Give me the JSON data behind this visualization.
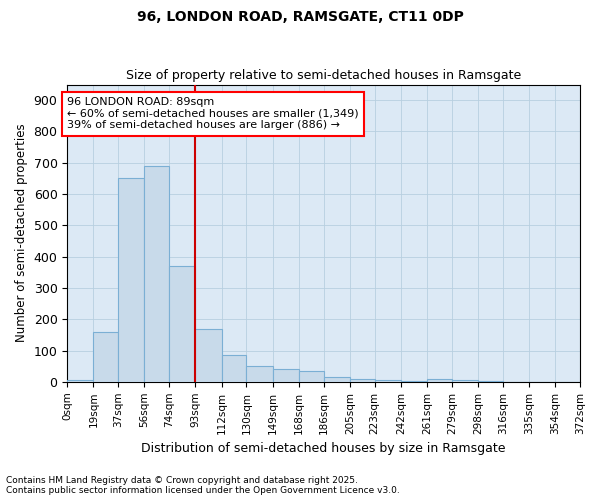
{
  "title1": "96, LONDON ROAD, RAMSGATE, CT11 0DP",
  "title2": "Size of property relative to semi-detached houses in Ramsgate",
  "xlabel": "Distribution of semi-detached houses by size in Ramsgate",
  "ylabel": "Number of semi-detached properties",
  "annotation_line1": "96 LONDON ROAD: 89sqm",
  "annotation_line2": "← 60% of semi-detached houses are smaller (1,349)",
  "annotation_line3": "39% of semi-detached houses are larger (886) →",
  "bin_edges": [
    0,
    19,
    37,
    56,
    74,
    93,
    112,
    130,
    149,
    168,
    186,
    205,
    223,
    242,
    261,
    279,
    298,
    316,
    335,
    354,
    372
  ],
  "bin_labels": [
    "0sqm",
    "19sqm",
    "37sqm",
    "56sqm",
    "74sqm",
    "93sqm",
    "112sqm",
    "130sqm",
    "149sqm",
    "168sqm",
    "186sqm",
    "205sqm",
    "223sqm",
    "242sqm",
    "261sqm",
    "279sqm",
    "298sqm",
    "316sqm",
    "335sqm",
    "354sqm",
    "372sqm"
  ],
  "counts": [
    5,
    160,
    650,
    690,
    370,
    170,
    85,
    50,
    40,
    35,
    15,
    10,
    5,
    3,
    10,
    5,
    2,
    0,
    0,
    0
  ],
  "bar_facecolor": "#c8daea",
  "bar_edgecolor": "#7bafd4",
  "vline_x": 93,
  "vline_color": "#cc0000",
  "ylim": [
    0,
    950
  ],
  "yticks": [
    0,
    100,
    200,
    300,
    400,
    500,
    600,
    700,
    800,
    900
  ],
  "ax_facecolor": "#dce9f5",
  "grid_color": "#b8cfe0",
  "footnote1": "Contains HM Land Registry data © Crown copyright and database right 2025.",
  "footnote2": "Contains public sector information licensed under the Open Government Licence v3.0."
}
